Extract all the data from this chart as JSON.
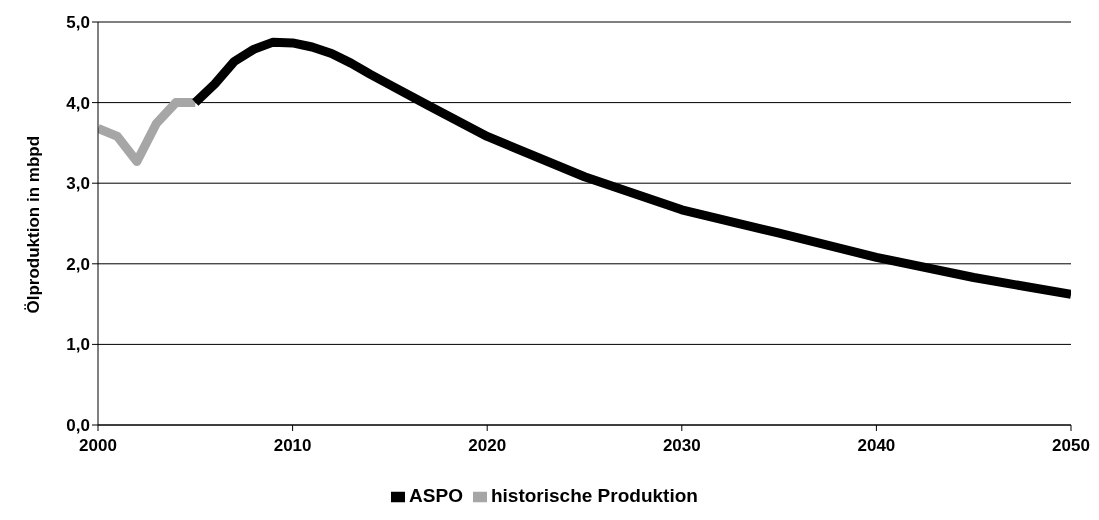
{
  "chart_data": {
    "type": "line",
    "ylabel": "Ölproduktion in mbpd",
    "xlim": [
      2000,
      2050
    ],
    "xticks": [
      2000,
      2010,
      2020,
      2030,
      2040,
      2050
    ],
    "ylim": [
      0,
      5
    ],
    "yticks": [
      {
        "value": 0,
        "label": "0,0"
      },
      {
        "value": 1,
        "label": "1,0"
      },
      {
        "value": 2,
        "label": "2,0"
      },
      {
        "value": 3,
        "label": "3,0"
      },
      {
        "value": 4,
        "label": "4,0"
      },
      {
        "value": 5,
        "label": "5,0"
      }
    ],
    "grid": "y",
    "legend": "bottom",
    "marker": "none",
    "line_style": "solid",
    "series": [
      {
        "name": "historische Produktion",
        "color": "#a6a6a6",
        "x": [
          2000,
          2001,
          2002,
          2003,
          2004,
          2005
        ],
        "values": [
          3.68,
          3.58,
          3.27,
          3.74,
          4.0,
          4.0
        ]
      },
      {
        "name": "ASPO",
        "color": "#000000",
        "x": [
          2005,
          2006,
          2007,
          2008,
          2009,
          2010,
          2011,
          2012,
          2013,
          2014,
          2015,
          2017,
          2020,
          2025,
          2030,
          2035,
          2040,
          2045,
          2050
        ],
        "values": [
          4.0,
          4.23,
          4.51,
          4.66,
          4.75,
          4.74,
          4.69,
          4.61,
          4.49,
          4.35,
          4.22,
          3.96,
          3.58,
          3.08,
          2.67,
          2.38,
          2.08,
          1.83,
          1.62
        ]
      }
    ]
  }
}
